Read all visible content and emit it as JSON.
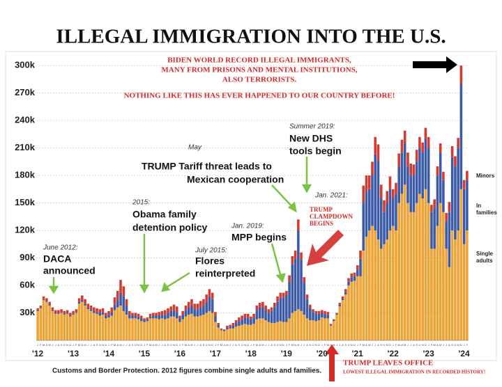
{
  "chart_data": {
    "type": "stacked-bar",
    "title": "ILLEGAL IMMIGRATION INTO THE U.S.",
    "annotations": [
      "BIDEN WORLD RECORD ILLEGAL IMMIGRANTS,",
      "MANY FROM PRISONS AND MENTAL INSTITUTIONS,",
      "ALSO TERRORISTS.",
      "NOTHING LIKE THIS HAS EVER HAPPENED TO OUR COUNTRY BEFORE!",
      "Summer 2019:",
      "New DHS",
      "tools begin",
      "May",
      "TRUMP Tariff threat leads to",
      "Mexican cooperation",
      "Jan. 2021:",
      "TRUMP",
      "CLAMPDOWN",
      "BEGINS",
      "2015:",
      "Obama family",
      "detention policy",
      "Jan. 2019:",
      "MPP begins",
      "June 2012:",
      "DACA",
      "announced",
      "July 2015:",
      "Flores",
      "reinterpreted",
      "Customs and Border Protection. 2012 figures combine single adults and families.",
      "TRUMP LEAVES OFFICE",
      "LOWEST ILLEGAL IMMIGRATION IN RECORDED HISTORY!"
    ],
    "categories": [
      "J",
      "F",
      "M",
      "A",
      "M",
      "J",
      "J",
      "A",
      "S",
      "O",
      "N",
      "D",
      "J",
      "F",
      "M",
      "A",
      "M",
      "J",
      "J",
      "A",
      "S",
      "O",
      "N",
      "D",
      "J",
      "F",
      "M",
      "A",
      "M",
      "J",
      "J",
      "A",
      "S",
      "O",
      "N",
      "D",
      "J",
      "F",
      "M",
      "A",
      "M",
      "J",
      "J",
      "A",
      "S",
      "O",
      "N",
      "D",
      "J",
      "F",
      "M",
      "A",
      "M",
      "J",
      "J",
      "A",
      "S",
      "O",
      "N",
      "D",
      "J",
      "F",
      "M",
      "A",
      "M",
      "J",
      "J",
      "A",
      "S",
      "O",
      "N",
      "D",
      "J",
      "F",
      "M",
      "A",
      "M",
      "J",
      "J",
      "A",
      "S",
      "O",
      "N",
      "D",
      "J",
      "F",
      "M",
      "A",
      "M",
      "J",
      "J",
      "A",
      "S",
      "O",
      "N",
      "D",
      "J",
      "F",
      "M",
      "A",
      "M",
      "J",
      "J",
      "A",
      "S",
      "O",
      "N",
      "D",
      "J",
      "F",
      "M",
      "A",
      "M",
      "J",
      "J",
      "A",
      "S",
      "O",
      "N",
      "D",
      "J",
      "F",
      "M",
      "A",
      "M",
      "J",
      "J",
      "A",
      "S",
      "O",
      "N",
      "D",
      "J",
      "F",
      "M",
      "A",
      "M",
      "J",
      "J",
      "A",
      "S",
      "O",
      "N",
      "D",
      "J",
      "F"
    ],
    "year_labels": [
      "'12",
      "'13",
      "'14",
      "'15",
      "'16",
      "'17",
      "'18",
      "'19",
      "'20",
      "'21",
      "'22",
      "'23",
      "'24"
    ],
    "series": [
      {
        "name": "Single adults",
        "color": "#f0a232",
        "values": [
          32,
          35,
          44,
          42,
          38,
          32,
          29,
          29,
          30,
          28,
          29,
          26,
          28,
          30,
          40,
          42,
          38,
          34,
          32,
          30,
          29,
          27,
          28,
          24,
          25,
          27,
          33,
          36,
          38,
          32,
          28,
          24,
          24,
          24,
          23,
          21,
          20,
          21,
          24,
          24,
          24,
          23,
          24,
          23,
          24,
          26,
          26,
          24,
          20,
          23,
          26,
          28,
          29,
          26,
          26,
          27,
          28,
          30,
          32,
          30,
          20,
          14,
          11,
          10,
          12,
          13,
          13,
          15,
          16,
          17,
          18,
          17,
          17,
          18,
          23,
          24,
          24,
          22,
          20,
          19,
          19,
          20,
          21,
          20,
          20,
          24,
          30,
          32,
          34,
          32,
          28,
          24,
          22,
          22,
          21,
          22,
          25,
          24,
          24,
          16,
          21,
          28,
          37,
          44,
          50,
          60,
          64,
          65,
          70,
          70,
          98,
          113,
          120,
          125,
          120,
          110,
          100,
          105,
          110,
          120,
          125,
          120,
          150,
          160,
          170,
          150,
          140,
          140,
          150,
          160,
          155,
          165,
          150,
          100,
          100,
          125,
          150,
          140,
          100,
          80,
          120,
          110,
          120,
          165,
          105,
          120
        ]
      },
      {
        "name": "In families",
        "color": "#3b5ba8",
        "values": [
          1,
          1,
          1,
          1,
          1,
          1,
          1,
          1,
          1,
          1,
          1,
          1,
          1,
          1,
          2,
          2,
          2,
          2,
          2,
          2,
          2,
          3,
          3,
          3,
          3,
          4,
          6,
          8,
          14,
          16,
          10,
          4,
          3,
          3,
          3,
          3,
          2,
          2,
          2,
          3,
          3,
          4,
          4,
          5,
          6,
          6,
          7,
          7,
          4,
          5,
          7,
          8,
          9,
          8,
          8,
          9,
          10,
          12,
          16,
          15,
          7,
          3,
          1,
          1,
          2,
          2,
          3,
          4,
          5,
          6,
          7,
          8,
          6,
          7,
          10,
          12,
          12,
          11,
          10,
          13,
          17,
          22,
          25,
          27,
          29,
          40,
          53,
          57,
          86,
          56,
          35,
          21,
          13,
          9,
          8,
          7,
          5,
          5,
          4,
          1,
          1,
          1,
          2,
          2,
          3,
          4,
          5,
          5,
          7,
          19,
          53,
          50,
          45,
          55,
          83,
          86,
          55,
          35,
          40,
          45,
          30,
          40,
          40,
          45,
          45,
          40,
          40,
          40,
          45,
          50,
          50,
          55,
          60,
          40,
          45,
          55,
          55,
          35,
          30,
          60,
          80,
          80,
          90,
          115,
          60,
          55
        ]
      },
      {
        "name": "Minors",
        "color": "#d53a2e",
        "values": [
          2,
          2,
          3,
          3,
          3,
          3,
          3,
          3,
          3,
          3,
          3,
          3,
          3,
          3,
          4,
          5,
          5,
          4,
          4,
          4,
          4,
          4,
          4,
          3,
          4,
          5,
          8,
          10,
          14,
          11,
          7,
          4,
          3,
          3,
          3,
          3,
          2,
          2,
          3,
          3,
          3,
          4,
          4,
          5,
          5,
          5,
          6,
          6,
          3,
          4,
          5,
          6,
          7,
          6,
          6,
          7,
          7,
          8,
          8,
          7,
          4,
          2,
          1,
          1,
          2,
          2,
          3,
          3,
          4,
          4,
          4,
          4,
          3,
          4,
          5,
          5,
          6,
          5,
          4,
          4,
          5,
          6,
          6,
          5,
          5,
          7,
          9,
          9,
          12,
          8,
          6,
          5,
          4,
          3,
          3,
          3,
          3,
          3,
          3,
          1,
          1,
          1,
          2,
          2,
          3,
          4,
          4,
          4,
          5,
          9,
          18,
          17,
          15,
          15,
          19,
          18,
          15,
          13,
          13,
          14,
          10,
          12,
          14,
          14,
          14,
          15,
          13,
          12,
          13,
          12,
          11,
          12,
          12,
          8,
          9,
          10,
          10,
          9,
          9,
          11,
          12,
          11,
          11,
          20,
          10,
          10
        ]
      }
    ],
    "ylim": [
      0,
      310
    ],
    "yticks": [
      {
        "value": 30,
        "label": "30k"
      },
      {
        "value": 60,
        "label": "60k"
      },
      {
        "value": 90,
        "label": "90k"
      },
      {
        "value": 120,
        "label": "120k"
      },
      {
        "value": 150,
        "label": "150k"
      },
      {
        "value": 180,
        "label": "180k"
      },
      {
        "value": 210,
        "label": "210k"
      },
      {
        "value": 240,
        "label": "240k"
      },
      {
        "value": 270,
        "label": "270k"
      },
      {
        "value": 300,
        "label": "300k"
      }
    ],
    "grid": true
  }
}
